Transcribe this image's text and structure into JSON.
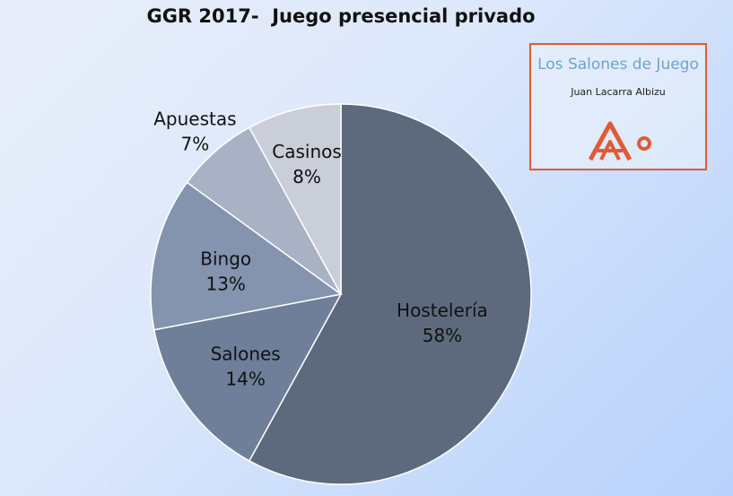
{
  "chart_data": {
    "type": "pie",
    "title": "GGR 2017-  Juego presencial privado",
    "slices": [
      {
        "label": "Hostelería",
        "pct_label": "58%",
        "value": 58,
        "color": "#5d6a7e"
      },
      {
        "label": "Salones",
        "pct_label": "14%",
        "value": 14,
        "color": "#6f7f99"
      },
      {
        "label": "Bingo",
        "pct_label": "13%",
        "value": 13,
        "color": "#8493ae"
      },
      {
        "label": "Apuestas",
        "pct_label": "7%",
        "value": 7,
        "color": "#a8b2c4"
      },
      {
        "label": "Casinos",
        "pct_label": "8%",
        "value": 8,
        "color": "#c9ced8"
      }
    ],
    "start_angle_deg": 0,
    "direction": "clockwise"
  },
  "logo": {
    "title": "Los Salones de Juego",
    "author": "Juan Lacarra Albizu",
    "icon": "A-circle-logo-icon",
    "border_color": "#e05a38",
    "title_color": "#6fa3cc"
  }
}
